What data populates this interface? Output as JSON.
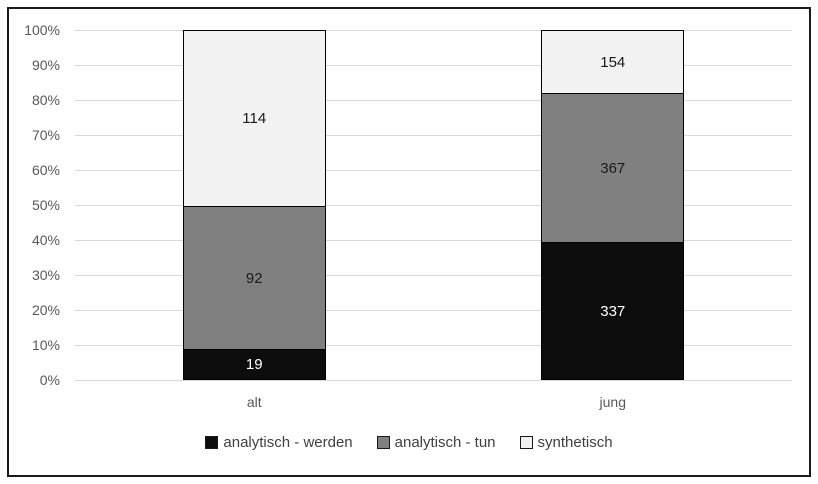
{
  "figure": {
    "background": "#ffffff",
    "border_color": "#1a1a1a"
  },
  "chart_data": {
    "type": "bar",
    "subtype": "stacked-100-percent",
    "title": "",
    "xlabel": "",
    "ylabel": "",
    "categories": [
      "alt",
      "jung"
    ],
    "series": [
      {
        "name": "analytisch - werden",
        "values": [
          19,
          337
        ],
        "color": "#0d0d0d",
        "label_color": "#ffffff"
      },
      {
        "name": "analytisch - tun",
        "values": [
          92,
          367
        ],
        "color": "#808080",
        "label_color": "#1a1a1a"
      },
      {
        "name": "synthetisch",
        "values": [
          114,
          154
        ],
        "color": "#f2f2f2",
        "label_color": "#1a1a1a"
      }
    ],
    "y_axis": {
      "min": 0,
      "max": 100,
      "ticks": [
        "0%",
        "10%",
        "20%",
        "30%",
        "40%",
        "50%",
        "60%",
        "70%",
        "80%",
        "90%",
        "100%"
      ]
    },
    "grid": true,
    "gridline_color": "#d9d9d9",
    "axis_text_color": "#595959",
    "legend_position": "bottom",
    "legend_text_color": "#404040"
  }
}
